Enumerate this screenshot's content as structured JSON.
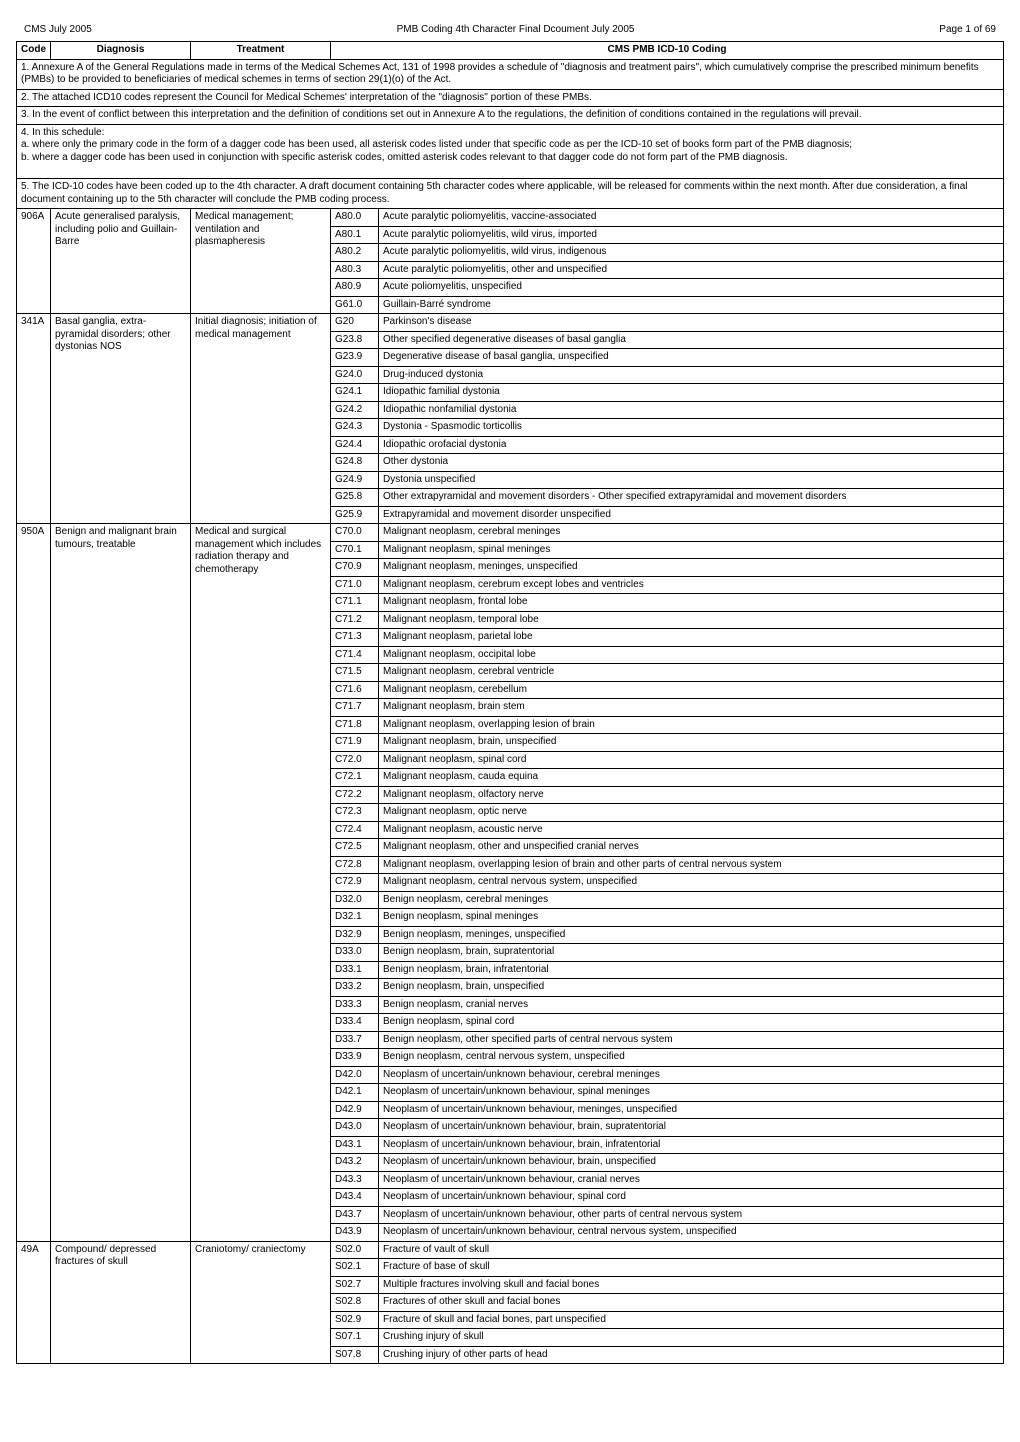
{
  "header": {
    "left": "CMS July 2005",
    "center": "PMB Coding 4th Character Final Dcoument July 2005",
    "right": "Page 1 of 69"
  },
  "columns": {
    "code": "Code",
    "diagnosis": "Diagnosis",
    "treatment": "Treatment",
    "icd_heading": "CMS PMB ICD-10 Coding"
  },
  "notes": {
    "n1": "1. Annexure A of the General Regulations made in terms of the Medical Schemes Act, 131 of 1998 provides a schedule of \"diagnosis and treatment pairs\", which cumulatively comprise the prescribed minimum benefits (PMBs) to be provided to beneficiaries of medical schemes in terms of section 29(1)(o) of the Act.",
    "n2": "2. The attached ICD10 codes represent the Council for Medical Schemes' interpretation of the \"diagnosis\" portion of these PMBs.",
    "n3": "3. In the event of conflict between this interpretation and the definition of conditions set out in Annexure A to the regulations, the definition of conditions contained in the regulations will prevail.",
    "n4": "4. In this schedule:\na. where only the primary code in the form of a dagger code has been used, all asterisk codes listed under that specific code as per the ICD-10 set of books form part of the PMB diagnosis;\nb. where a dagger code has been used in conjunction with specific asterisk codes, omitted asterisk codes relevant to that dagger code do not form part of the PMB diagnosis.",
    "n5": "5. The ICD-10 codes have been coded up to the 4th character. A draft document containing 5th character codes where applicable, will be released for comments within the next month. After due consideration, a final document containing up to the 5th character will conclude the PMB coding process."
  },
  "groups": [
    {
      "code": "906A",
      "diagnosis": "Acute generalised paralysis, including polio and Guillain-Barre",
      "treatment": "Medical management; ventilation and plasmapheresis",
      "rows": [
        {
          "icd": "A80.0",
          "desc": "Acute paralytic poliomyelitis, vaccine-associated"
        },
        {
          "icd": "A80.1",
          "desc": "Acute paralytic poliomyelitis, wild virus, imported"
        },
        {
          "icd": "A80.2",
          "desc": "Acute paralytic poliomyelitis, wild virus, indigenous"
        },
        {
          "icd": "A80.3",
          "desc": "Acute paralytic poliomyelitis, other and unspecified"
        },
        {
          "icd": "A80.9",
          "desc": "Acute poliomyelitis, unspecified"
        },
        {
          "icd": "G61.0",
          "desc": "Guillain-Barré syndrome"
        }
      ]
    },
    {
      "code": "341A",
      "diagnosis": "Basal ganglia, extra-pyramidal disorders; other dystonias  NOS",
      "treatment": "Initial diagnosis; initiation of medical management",
      "rows": [
        {
          "icd": "G20",
          "desc": "Parkinson's disease"
        },
        {
          "icd": "G23.8",
          "desc": "Other specified degenerative diseases of basal ganglia"
        },
        {
          "icd": "G23.9",
          "desc": "Degenerative disease of basal ganglia, unspecified"
        },
        {
          "icd": "G24.0",
          "desc": "Drug-induced dystonia"
        },
        {
          "icd": "G24.1",
          "desc": "Idiopathic familial dystonia"
        },
        {
          "icd": "G24.2",
          "desc": "Idiopathic nonfamilial dystonia"
        },
        {
          "icd": "G24.3",
          "desc": "Dystonia - Spasmodic torticollis"
        },
        {
          "icd": "G24.4",
          "desc": "Idiopathic orofacial dystonia"
        },
        {
          "icd": "G24.8",
          "desc": "Other dystonia"
        },
        {
          "icd": "G24.9",
          "desc": "Dystonia unspecified"
        },
        {
          "icd": "G25.8",
          "desc": "Other extrapyramidal and movement disorders - Other specified extrapyramidal and movement disorders"
        },
        {
          "icd": "G25.9",
          "desc": "Extrapyramidal and movement disorder unspecified"
        }
      ]
    },
    {
      "code": "950A",
      "diagnosis": "Benign and malignant brain tumours, treatable",
      "treatment": "Medical and surgical management which includes radiation therapy and chemotherapy",
      "rows": [
        {
          "icd": "C70.0",
          "desc": "Malignant neoplasm, cerebral meninges"
        },
        {
          "icd": "C70.1",
          "desc": "Malignant neoplasm, spinal meninges"
        },
        {
          "icd": "C70.9",
          "desc": "Malignant neoplasm, meninges, unspecified"
        },
        {
          "icd": "C71.0",
          "desc": "Malignant neoplasm, cerebrum except lobes and ventricles"
        },
        {
          "icd": "C71.1",
          "desc": "Malignant neoplasm, frontal lobe"
        },
        {
          "icd": "C71.2",
          "desc": "Malignant neoplasm, temporal lobe"
        },
        {
          "icd": "C71.3",
          "desc": "Malignant neoplasm, parietal lobe"
        },
        {
          "icd": "C71.4",
          "desc": "Malignant neoplasm, occipital lobe"
        },
        {
          "icd": "C71.5",
          "desc": "Malignant neoplasm, cerebral ventricle"
        },
        {
          "icd": "C71.6",
          "desc": "Malignant neoplasm, cerebellum"
        },
        {
          "icd": "C71.7",
          "desc": "Malignant neoplasm, brain stem"
        },
        {
          "icd": "C71.8",
          "desc": "Malignant neoplasm, overlapping lesion of brain"
        },
        {
          "icd": "C71.9",
          "desc": "Malignant neoplasm, brain, unspecified"
        },
        {
          "icd": "C72.0",
          "desc": "Malignant neoplasm, spinal cord"
        },
        {
          "icd": "C72.1",
          "desc": "Malignant neoplasm, cauda equina"
        },
        {
          "icd": "C72.2",
          "desc": "Malignant neoplasm, olfactory nerve"
        },
        {
          "icd": "C72.3",
          "desc": "Malignant neoplasm, optic nerve"
        },
        {
          "icd": "C72.4",
          "desc": "Malignant neoplasm, acoustic nerve"
        },
        {
          "icd": "C72.5",
          "desc": "Malignant neoplasm, other and unspecified cranial nerves"
        },
        {
          "icd": "C72.8",
          "desc": "Malignant neoplasm, overlapping lesion of brain and other parts of central nervous system"
        },
        {
          "icd": "C72.9",
          "desc": "Malignant neoplasm, central nervous system, unspecified"
        },
        {
          "icd": "D32.0",
          "desc": "Benign neoplasm, cerebral meninges"
        },
        {
          "icd": "D32.1",
          "desc": "Benign neoplasm, spinal meninges"
        },
        {
          "icd": "D32.9",
          "desc": "Benign neoplasm, meninges, unspecified"
        },
        {
          "icd": "D33.0",
          "desc": "Benign neoplasm, brain, supratentorial"
        },
        {
          "icd": "D33.1",
          "desc": "Benign neoplasm, brain, infratentorial"
        },
        {
          "icd": "D33.2",
          "desc": "Benign neoplasm, brain, unspecified"
        },
        {
          "icd": "D33.3",
          "desc": "Benign neoplasm, cranial nerves"
        },
        {
          "icd": "D33.4",
          "desc": "Benign neoplasm, spinal cord"
        },
        {
          "icd": "D33.7",
          "desc": "Benign neoplasm, other specified parts of central nervous system"
        },
        {
          "icd": "D33.9",
          "desc": "Benign neoplasm, central nervous system, unspecified"
        },
        {
          "icd": "D42.0",
          "desc": "Neoplasm of uncertain/unknown behaviour, cerebral meninges"
        },
        {
          "icd": "D42.1",
          "desc": "Neoplasm of uncertain/unknown behaviour, spinal meninges"
        },
        {
          "icd": "D42.9",
          "desc": "Neoplasm of uncertain/unknown behaviour, meninges, unspecified"
        },
        {
          "icd": "D43.0",
          "desc": "Neoplasm of uncertain/unknown behaviour, brain, supratentorial"
        },
        {
          "icd": "D43.1",
          "desc": "Neoplasm of uncertain/unknown behaviour, brain, infratentorial"
        },
        {
          "icd": "D43.2",
          "desc": "Neoplasm of uncertain/unknown behaviour, brain, unspecified"
        },
        {
          "icd": "D43.3",
          "desc": "Neoplasm of uncertain/unknown behaviour, cranial nerves"
        },
        {
          "icd": "D43.4",
          "desc": "Neoplasm of uncertain/unknown behaviour, spinal cord"
        },
        {
          "icd": "D43.7",
          "desc": "Neoplasm of uncertain/unknown behaviour, other parts of central nervous system"
        },
        {
          "icd": "D43.9",
          "desc": "Neoplasm of uncertain/unknown behaviour, central nervous system, unspecified"
        }
      ]
    },
    {
      "code": "49A",
      "diagnosis": "Compound/ depressed fractures of skull",
      "treatment": "Craniotomy/ craniectomy",
      "rows": [
        {
          "icd": "S02.0",
          "desc": "Fracture of vault of skull"
        },
        {
          "icd": "S02.1",
          "desc": "Fracture of base of skull"
        },
        {
          "icd": "S02.7",
          "desc": "Multiple fractures involving skull and facial bones"
        },
        {
          "icd": "S02.8",
          "desc": "Fractures of other skull and facial bones"
        },
        {
          "icd": "S02.9",
          "desc": "Fracture of skull and facial bones, part unspecified"
        },
        {
          "icd": "S07.1",
          "desc": "Crushing injury of skull"
        },
        {
          "icd": "S07.8",
          "desc": "Crushing injury of other parts of head"
        }
      ]
    }
  ]
}
